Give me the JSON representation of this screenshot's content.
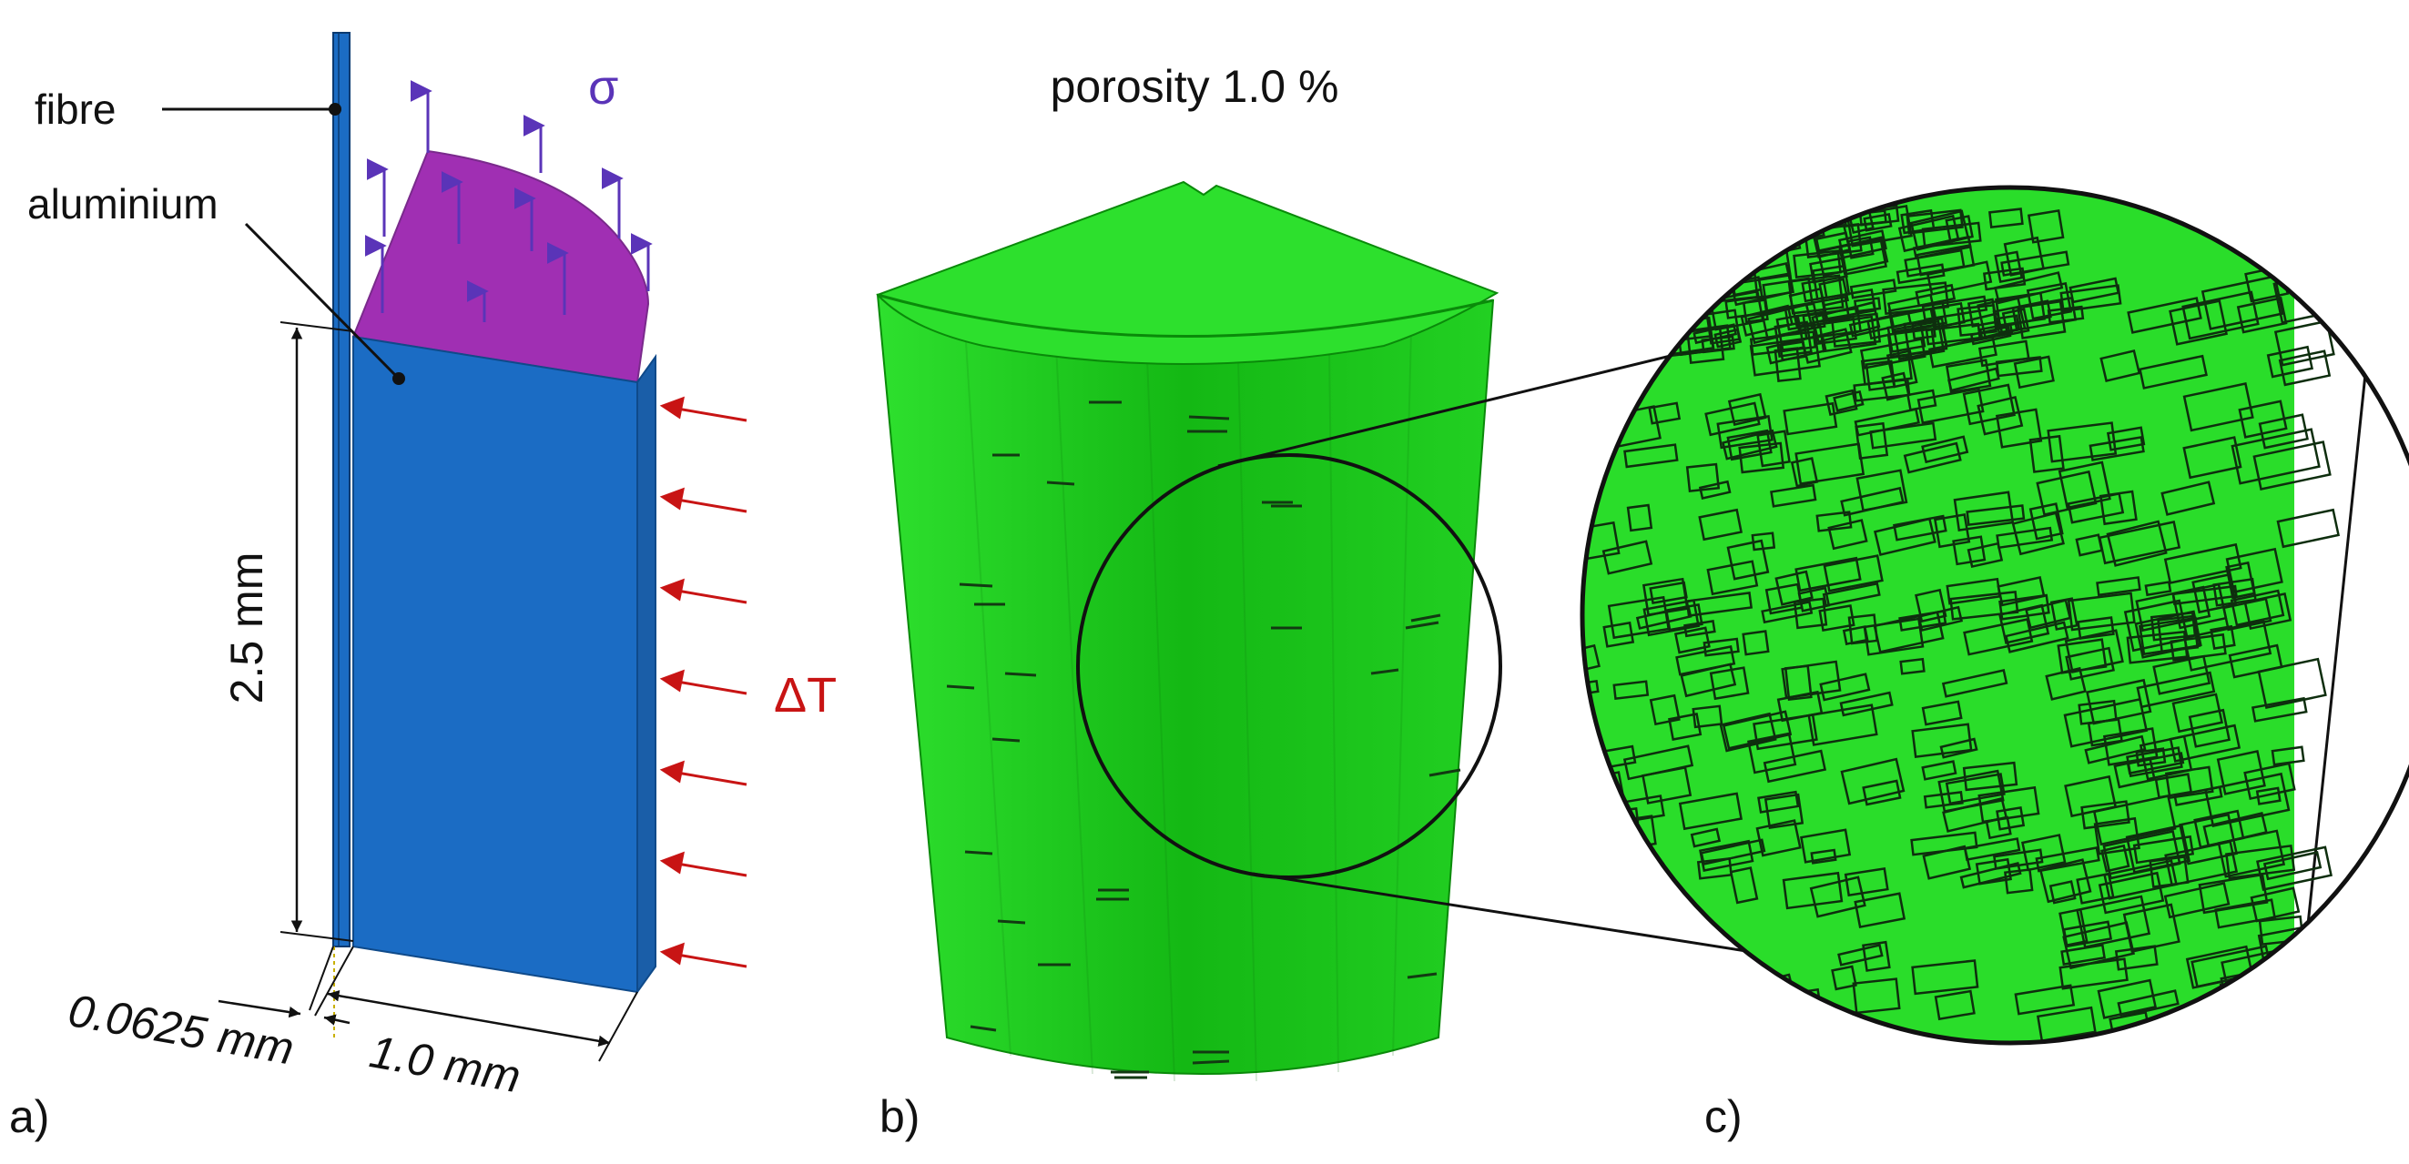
{
  "panel_a": {
    "fibre_label": "fibre",
    "aluminium_label": "aluminium",
    "stress_symbol": "σ",
    "thermal_symbol": "ΔT",
    "height_dim": "2.5 mm",
    "width_dim": "1.0 mm",
    "fibre_dim": "0.0625 mm",
    "panel_letter": "a)"
  },
  "panel_b": {
    "title": "porosity 1.0 %",
    "panel_letter": "b)"
  },
  "panel_c": {
    "panel_letter": "c)"
  },
  "colors": {
    "aluminium_blue": "#1b6cc4",
    "stress_magenta": "#a02fb3",
    "stress_arrow": "#5a34b8",
    "thermal_arrow": "#c81414",
    "solid_green": "#22dd22"
  }
}
